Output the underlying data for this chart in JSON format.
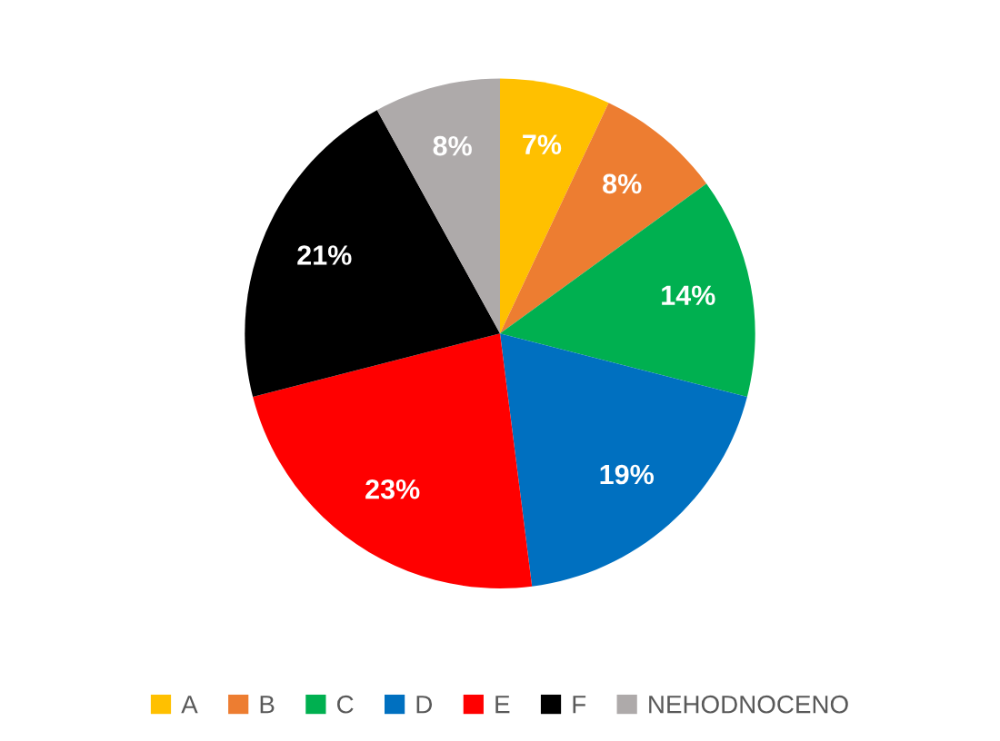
{
  "chart_data": {
    "type": "pie",
    "categories": [
      "A",
      "B",
      "C",
      "D",
      "E",
      "F",
      "NEHODNOCENO"
    ],
    "values": [
      7,
      8,
      14,
      19,
      23,
      21,
      8
    ],
    "colors": [
      "#ffc000",
      "#ed7d31",
      "#00b050",
      "#0070c0",
      "#ff0000",
      "#000000",
      "#aeaaaa"
    ],
    "value_labels": [
      "7%",
      "8%",
      "14%",
      "19%",
      "23%",
      "21%",
      "8%"
    ],
    "legend": "bottom"
  }
}
